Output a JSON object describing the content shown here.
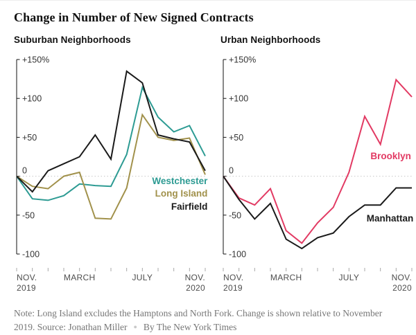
{
  "title": "Change in Number of New Signed Contracts",
  "footer": {
    "line1": "Note: Long Island excludes the Hamptons and North Fork. Change is shown relative to November",
    "line2_source": "2019. Source: Jonathan Miller",
    "line2_byline": "By The New York Times",
    "separator_color": "#c9c9c9"
  },
  "style": {
    "axis_color": "#121212",
    "ytick_label_color": "#333333",
    "xtick_label_color": "#4d4d4d",
    "xtick_mark_color": "#a8a8a8",
    "zero_line_color": "#c8c8c8"
  },
  "chart_data": [
    {
      "type": "line",
      "title": "Suburban Neighborhoods",
      "categories": [
        "Nov. 2019",
        "Dec. 2019",
        "Jan. 2020",
        "Feb. 2020",
        "March 2020",
        "April 2020",
        "May 2020",
        "June 2020",
        "July 2020",
        "Aug. 2020",
        "Sept. 2020",
        "Oct. 2020",
        "Nov. 2020"
      ],
      "ylim": [
        -100,
        150
      ],
      "yticks": [
        {
          "v": 150,
          "label": "+150%"
        },
        {
          "v": 100,
          "label": "+100"
        },
        {
          "v": 50,
          "label": "+50"
        },
        {
          "v": 0,
          "label": "0"
        },
        {
          "v": -50,
          "label": "-50"
        },
        {
          "v": -100,
          "label": "-100"
        }
      ],
      "xticks": [
        {
          "month_index": 0,
          "lines": [
            "NOV.",
            "2019"
          ],
          "anchor": "start"
        },
        {
          "month_index": 4,
          "lines": [
            "MARCH"
          ],
          "anchor": "middle"
        },
        {
          "month_index": 8,
          "lines": [
            "JULY"
          ],
          "anchor": "middle"
        },
        {
          "month_index": 12,
          "lines": [
            "NOV.",
            "2020"
          ],
          "anchor": "end"
        }
      ],
      "zero_line": "dotted",
      "series": [
        {
          "name": "Westchester",
          "color": "#2d9b93",
          "values": [
            0,
            -29,
            -31,
            -25,
            -10,
            -12,
            -13,
            28,
            114,
            76,
            57,
            65,
            26
          ]
        },
        {
          "name": "Long Island",
          "color": "#a1914b",
          "values": [
            0,
            -13,
            -16,
            0,
            5,
            -54,
            -55,
            -15,
            79,
            50,
            46,
            49,
            2
          ]
        },
        {
          "name": "Fairfield",
          "color": "#1a1a1a",
          "values": [
            0,
            -20,
            7,
            16,
            25,
            53,
            22,
            135,
            120,
            53,
            48,
            44,
            7
          ]
        }
      ],
      "annotations": [
        {
          "text": "Westchester",
          "x": 12.15,
          "y": -6,
          "anchor": "end",
          "color": "#2d9b93"
        },
        {
          "text": "Long Island",
          "x": 12.15,
          "y": -22,
          "anchor": "end",
          "color": "#a1914b"
        },
        {
          "text": "Fairfield",
          "x": 12.15,
          "y": -39,
          "anchor": "end",
          "color": "#1a1a1a"
        }
      ]
    },
    {
      "type": "line",
      "title": "Urban Neighborhoods",
      "categories": [
        "Nov. 2019",
        "Dec. 2019",
        "Jan. 2020",
        "Feb. 2020",
        "March 2020",
        "April 2020",
        "May 2020",
        "June 2020",
        "July 2020",
        "Aug. 2020",
        "Sept. 2020",
        "Oct. 2020",
        "Nov. 2020"
      ],
      "ylim": [
        -100,
        150
      ],
      "yticks": [
        {
          "v": 150,
          "label": "+150%"
        },
        {
          "v": 100,
          "label": "+100"
        },
        {
          "v": 50,
          "label": "+50"
        },
        {
          "v": 0,
          "label": "0"
        },
        {
          "v": -50,
          "label": "-50"
        },
        {
          "v": -100,
          "label": "-100"
        }
      ],
      "xticks": [
        {
          "month_index": 0,
          "lines": [
            "NOV.",
            "2019"
          ],
          "anchor": "start"
        },
        {
          "month_index": 4,
          "lines": [
            "MARCH"
          ],
          "anchor": "middle"
        },
        {
          "month_index": 8,
          "lines": [
            "JULY"
          ],
          "anchor": "middle"
        },
        {
          "month_index": 12,
          "lines": [
            "NOV.",
            "2020"
          ],
          "anchor": "end"
        }
      ],
      "zero_line": "dotted",
      "series": [
        {
          "name": "Brooklyn",
          "color": "#e23a63",
          "values": [
            0,
            -28,
            -37,
            -16,
            -70,
            -86,
            -60,
            -40,
            5,
            77,
            41,
            124,
            102
          ]
        },
        {
          "name": "Manhattan",
          "color": "#1a1a1a",
          "values": [
            0,
            -30,
            -55,
            -35,
            -81,
            -93,
            -79,
            -73,
            -52,
            -37,
            -37,
            -15,
            -15
          ]
        }
      ],
      "annotations": [
        {
          "text": "Brooklyn",
          "x": 11.95,
          "y": 26,
          "anchor": "end",
          "color": "#e23a63"
        },
        {
          "text": "Manhattan",
          "x": 12.1,
          "y": -54,
          "anchor": "end",
          "color": "#1a1a1a"
        }
      ]
    }
  ]
}
